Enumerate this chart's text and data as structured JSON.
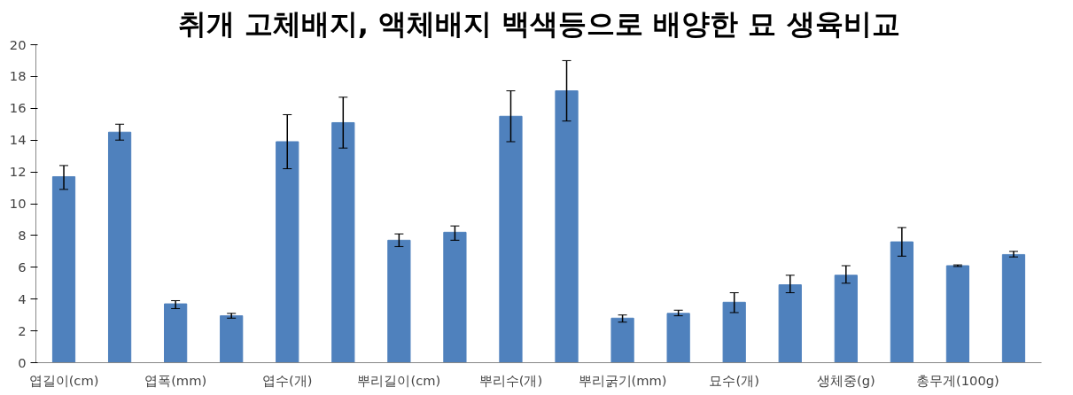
{
  "chart_data": {
    "type": "bar",
    "title": "취개 고체배지, 액체배지 백색등으로 배양한 묘 생육비교",
    "categories": [
      "엽길이(cm)",
      null,
      "엽폭(mm)",
      null,
      "엽수(개)",
      null,
      "뿌리길이(cm)",
      null,
      "뿌리수(개)",
      null,
      "뿌리굵기(mm)",
      null,
      "묘수(개)",
      null,
      "생체중(g)",
      null,
      "총무게(100g)",
      null
    ],
    "values": [
      11.7,
      14.5,
      3.7,
      2.95,
      13.9,
      15.1,
      7.7,
      8.2,
      15.5,
      17.1,
      2.8,
      3.1,
      3.8,
      4.9,
      5.5,
      7.6,
      6.1,
      6.8
    ],
    "errors": [
      [
        10.9,
        12.4
      ],
      [
        14.0,
        15.0
      ],
      [
        3.4,
        3.9
      ],
      [
        2.8,
        3.1
      ],
      [
        12.2,
        15.6
      ],
      [
        13.5,
        16.7
      ],
      [
        7.3,
        8.1
      ],
      [
        7.7,
        8.6
      ],
      [
        13.9,
        17.1
      ],
      [
        15.2,
        19.0
      ],
      [
        2.55,
        3.0
      ],
      [
        2.95,
        3.3
      ],
      [
        3.15,
        4.4
      ],
      [
        4.4,
        5.5
      ],
      [
        5.0,
        6.1
      ],
      [
        6.7,
        8.5
      ],
      [
        6.05,
        6.15
      ],
      [
        6.65,
        7.0
      ]
    ],
    "color": "#4f81bd",
    "ylim": [
      0,
      20
    ],
    "yticks": [
      0,
      2,
      4,
      6,
      8,
      10,
      12,
      14,
      16,
      18,
      20
    ],
    "grid": false
  }
}
